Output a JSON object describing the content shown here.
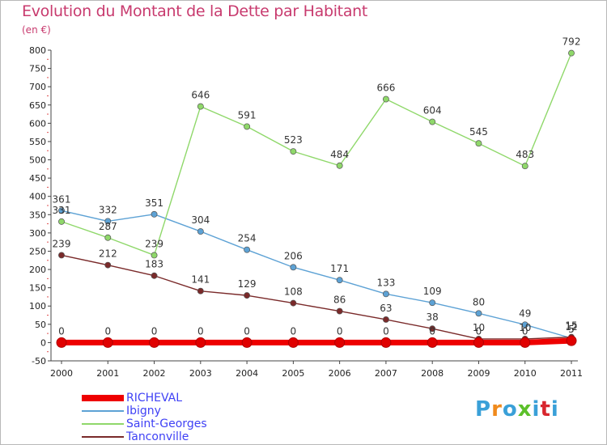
{
  "header": {
    "title": "Evolution du Montant de la Dette par Habitant",
    "unit": "(en €)"
  },
  "watermark": {
    "text": "Proxiti",
    "colors": [
      "#3aa0d8",
      "#f08a1c",
      "#3aa0d8",
      "#5cc02a",
      "#3aa0d8",
      "#d8262e",
      "#3aa0d8"
    ]
  },
  "chart_data": {
    "type": "line",
    "title": "Evolution du Montant de la Dette par Habitant",
    "ylabel": "(en €)",
    "xlabel": "",
    "x": [
      "2000",
      "2001",
      "2002",
      "2003",
      "2004",
      "2005",
      "2006",
      "2007",
      "2008",
      "2009",
      "2010",
      "2011"
    ],
    "ylim": [
      -50,
      800
    ],
    "yticks": [
      -50,
      0,
      50,
      100,
      150,
      200,
      250,
      300,
      350,
      400,
      450,
      500,
      550,
      600,
      650,
      700,
      750,
      800
    ],
    "grid": false,
    "legend_position": "bottom-left",
    "series": [
      {
        "name": "RICHEVAL",
        "color": "#ee0000",
        "values": [
          0,
          0,
          0,
          0,
          0,
          0,
          0,
          0,
          0,
          0,
          0,
          5
        ],
        "labels": [
          "0",
          "0",
          "0",
          "0",
          "0",
          "0",
          "0",
          "0",
          "0",
          "0",
          "0",
          "5"
        ]
      },
      {
        "name": "Ibigny",
        "color": "#5da2d5",
        "values": [
          361,
          332,
          351,
          304,
          254,
          206,
          171,
          133,
          109,
          80,
          49,
          12
        ],
        "labels": [
          "361",
          "332",
          "351",
          "304",
          "254",
          "206",
          "171",
          "133",
          "109",
          "80",
          "49",
          "12"
        ]
      },
      {
        "name": "Saint-Georges",
        "color": "#8fd86a",
        "values": [
          331,
          287,
          239,
          646,
          591,
          523,
          484,
          666,
          604,
          545,
          483,
          792
        ],
        "labels": [
          "331",
          "287",
          "239",
          "646",
          "591",
          "523",
          "484",
          "666",
          "604",
          "545",
          "483",
          "792"
        ]
      },
      {
        "name": "Tanconville",
        "color": "#7a2a2a",
        "values": [
          239,
          212,
          183,
          141,
          129,
          108,
          86,
          63,
          38,
          10,
          10,
          15
        ],
        "labels": [
          "239",
          "212",
          "183",
          "141",
          "129",
          "108",
          "86",
          "63",
          "38",
          "10",
          "10",
          "15"
        ]
      }
    ]
  }
}
